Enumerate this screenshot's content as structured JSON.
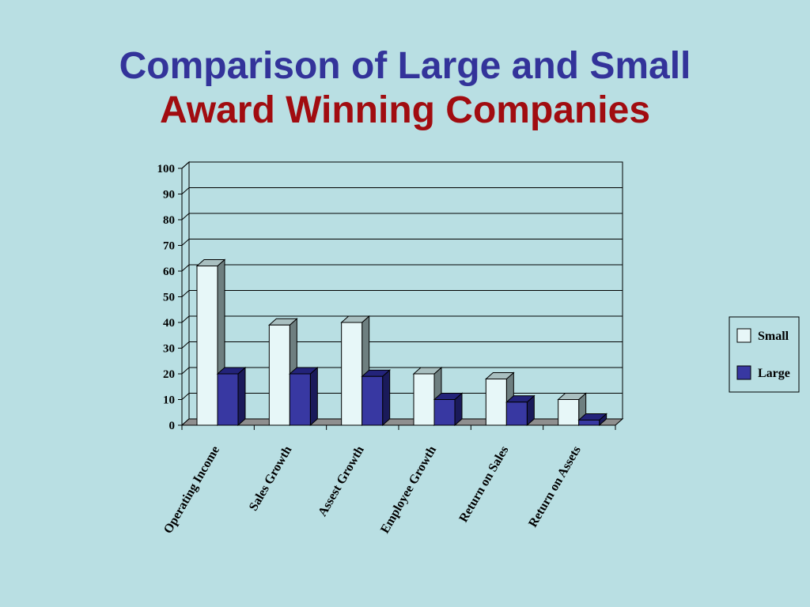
{
  "title": {
    "line1": "Comparison of  Large and Small",
    "line2": "Award Winning Companies"
  },
  "colors": {
    "background": "#b9dfe3",
    "title_line1": "#33339a",
    "title_line2": "#a10c10",
    "small_front": "#e7f7f8",
    "small_top": "#a9bfc0",
    "small_side": "#6e7f80",
    "large_front": "#3838a2",
    "large_top": "#23237a",
    "large_side": "#1a1a5a",
    "floor": "#8f8f8f"
  },
  "chart_data": {
    "type": "bar",
    "title": "",
    "xlabel": "",
    "ylabel": "",
    "ylim": [
      0,
      100
    ],
    "yticks": [
      0,
      10,
      20,
      30,
      40,
      50,
      60,
      70,
      80,
      90,
      100
    ],
    "grid": true,
    "legend_position": "right",
    "categories": [
      "Operating Income",
      "Sales Growth",
      "Assest Growth",
      "Employee Growth",
      "Return on Sales",
      "Return on Assets"
    ],
    "series": [
      {
        "name": "Small",
        "values": [
          62,
          39,
          40,
          20,
          18,
          10
        ]
      },
      {
        "name": "Large",
        "values": [
          20,
          20,
          19,
          10,
          9,
          2
        ]
      }
    ]
  }
}
